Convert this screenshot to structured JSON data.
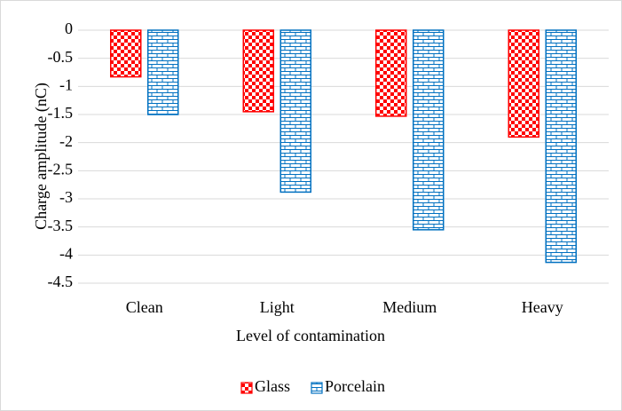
{
  "chart_data": {
    "type": "bar",
    "x_label": "Level of contamination",
    "y_label": "Charge amplitude (nC)",
    "categories": [
      "Clean",
      "Light",
      "Medium",
      "Heavy"
    ],
    "series": [
      {
        "name": "Glass",
        "color": "#ff0000",
        "pattern": "checker",
        "values": [
          -0.83,
          -1.45,
          -1.53,
          -1.9
        ]
      },
      {
        "name": "Porcelain",
        "color": "#0070c0",
        "pattern": "brick",
        "values": [
          -1.5,
          -2.88,
          -3.55,
          -4.13
        ]
      }
    ],
    "ylim": [
      -4.5,
      0
    ],
    "yticks": [
      0,
      -0.5,
      -1,
      -1.5,
      -2,
      -2.5,
      -3,
      -3.5,
      -4,
      -4.5
    ],
    "grid": true,
    "legend": "bottom"
  }
}
